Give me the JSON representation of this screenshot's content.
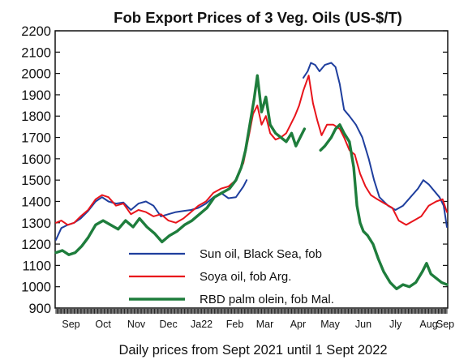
{
  "chart_data": {
    "type": "line",
    "title": "Fob Export Prices of 3 Veg. Oils  (US-$/T)",
    "xlabel": "Daily prices from Sept 2021 until 1 Sept 2022",
    "ylabel": "",
    "ylim": [
      900,
      2200
    ],
    "yticks": [
      900,
      1000,
      1100,
      1200,
      1300,
      1400,
      1500,
      1600,
      1700,
      1800,
      1900,
      2000,
      2100,
      2200
    ],
    "x_range": [
      "2021-09-01",
      "2022-09-01"
    ],
    "xticks": [
      {
        "label": "Sep",
        "date": "2021-09-15"
      },
      {
        "label": "Oct",
        "date": "2021-10-15"
      },
      {
        "label": "Nov",
        "date": "2021-11-15"
      },
      {
        "label": "Dec",
        "date": "2021-12-15"
      },
      {
        "label": "Ja22",
        "date": "2022-01-15"
      },
      {
        "label": "Feb",
        "date": "2022-02-15"
      },
      {
        "label": "Mar",
        "date": "2022-03-15"
      },
      {
        "label": "Apr",
        "date": "2022-04-15"
      },
      {
        "label": "May",
        "date": "2022-05-15"
      },
      {
        "label": "Jun",
        "date": "2022-06-15"
      },
      {
        "label": "Jly",
        "date": "2022-07-15"
      },
      {
        "label": "Aug",
        "date": "2022-08-15"
      },
      {
        "label": "Sep",
        "date": "2022-09-01"
      }
    ],
    "grid": false,
    "legend_position": "bottom-center",
    "series": [
      {
        "name": "Sun oil, Black Sea, fob",
        "color": "#1f3f9e",
        "points": [
          [
            "2021-09-01",
            1220
          ],
          [
            "2021-09-06",
            1275
          ],
          [
            "2021-09-12",
            1290
          ],
          [
            "2021-09-18",
            1300
          ],
          [
            "2021-09-24",
            1320
          ],
          [
            "2021-10-01",
            1355
          ],
          [
            "2021-10-08",
            1400
          ],
          [
            "2021-10-14",
            1420
          ],
          [
            "2021-10-20",
            1400
          ],
          [
            "2021-10-27",
            1390
          ],
          [
            "2021-11-03",
            1395
          ],
          [
            "2021-11-10",
            1360
          ],
          [
            "2021-11-17",
            1390
          ],
          [
            "2021-11-24",
            1400
          ],
          [
            "2021-12-01",
            1380
          ],
          [
            "2021-12-08",
            1330
          ],
          [
            "2021-12-15",
            1340
          ],
          [
            "2021-12-22",
            1350
          ],
          [
            "2021-12-29",
            1355
          ],
          [
            "2022-01-05",
            1360
          ],
          [
            "2022-01-12",
            1370
          ],
          [
            "2022-01-19",
            1390
          ],
          [
            "2022-01-26",
            1420
          ],
          [
            "2022-02-02",
            1440
          ],
          [
            "2022-02-09",
            1415
          ],
          [
            "2022-02-16",
            1420
          ],
          [
            "2022-02-23",
            1470
          ],
          [
            "2022-02-26",
            1500
          ],
          [
            "2022-04-20",
            1980
          ],
          [
            "2022-04-24",
            2010
          ],
          [
            "2022-04-27",
            2050
          ],
          [
            "2022-05-01",
            2040
          ],
          [
            "2022-05-05",
            2010
          ],
          [
            "2022-05-10",
            2040
          ],
          [
            "2022-05-16",
            2050
          ],
          [
            "2022-05-20",
            2030
          ],
          [
            "2022-05-24",
            1950
          ],
          [
            "2022-05-28",
            1830
          ],
          [
            "2022-06-02",
            1800
          ],
          [
            "2022-06-08",
            1760
          ],
          [
            "2022-06-14",
            1700
          ],
          [
            "2022-06-20",
            1600
          ],
          [
            "2022-06-25",
            1500
          ],
          [
            "2022-06-30",
            1420
          ],
          [
            "2022-07-08",
            1380
          ],
          [
            "2022-07-15",
            1360
          ],
          [
            "2022-07-22",
            1380
          ],
          [
            "2022-07-29",
            1420
          ],
          [
            "2022-08-05",
            1460
          ],
          [
            "2022-08-10",
            1500
          ],
          [
            "2022-08-15",
            1480
          ],
          [
            "2022-08-20",
            1450
          ],
          [
            "2022-08-25",
            1420
          ],
          [
            "2022-08-29",
            1380
          ],
          [
            "2022-09-01",
            1280
          ]
        ]
      },
      {
        "name": "Soya oil, fob Arg.",
        "color": "#e8141b",
        "points": [
          [
            "2021-09-01",
            1300
          ],
          [
            "2021-09-06",
            1310
          ],
          [
            "2021-09-12",
            1290
          ],
          [
            "2021-09-18",
            1300
          ],
          [
            "2021-09-24",
            1330
          ],
          [
            "2021-10-01",
            1360
          ],
          [
            "2021-10-08",
            1410
          ],
          [
            "2021-10-14",
            1430
          ],
          [
            "2021-10-20",
            1420
          ],
          [
            "2021-10-27",
            1380
          ],
          [
            "2021-11-03",
            1390
          ],
          [
            "2021-11-10",
            1340
          ],
          [
            "2021-11-17",
            1360
          ],
          [
            "2021-11-24",
            1350
          ],
          [
            "2021-12-01",
            1330
          ],
          [
            "2021-12-08",
            1340
          ],
          [
            "2021-12-15",
            1310
          ],
          [
            "2021-12-22",
            1300
          ],
          [
            "2021-12-29",
            1320
          ],
          [
            "2022-01-05",
            1350
          ],
          [
            "2022-01-12",
            1380
          ],
          [
            "2022-01-19",
            1400
          ],
          [
            "2022-01-26",
            1440
          ],
          [
            "2022-02-02",
            1460
          ],
          [
            "2022-02-09",
            1470
          ],
          [
            "2022-02-16",
            1500
          ],
          [
            "2022-02-23",
            1580
          ],
          [
            "2022-03-01",
            1730
          ],
          [
            "2022-03-04",
            1810
          ],
          [
            "2022-03-08",
            1850
          ],
          [
            "2022-03-12",
            1760
          ],
          [
            "2022-03-16",
            1800
          ],
          [
            "2022-03-20",
            1720
          ],
          [
            "2022-03-25",
            1690
          ],
          [
            "2022-03-30",
            1700
          ],
          [
            "2022-04-04",
            1720
          ],
          [
            "2022-04-08",
            1760
          ],
          [
            "2022-04-12",
            1800
          ],
          [
            "2022-04-16",
            1850
          ],
          [
            "2022-04-20",
            1920
          ],
          [
            "2022-04-25",
            1990
          ],
          [
            "2022-04-29",
            1860
          ],
          [
            "2022-05-03",
            1780
          ],
          [
            "2022-05-07",
            1710
          ],
          [
            "2022-05-12",
            1760
          ],
          [
            "2022-05-18",
            1760
          ],
          [
            "2022-05-24",
            1740
          ],
          [
            "2022-05-28",
            1700
          ],
          [
            "2022-06-02",
            1640
          ],
          [
            "2022-06-07",
            1620
          ],
          [
            "2022-06-12",
            1530
          ],
          [
            "2022-06-17",
            1470
          ],
          [
            "2022-06-22",
            1430
          ],
          [
            "2022-06-28",
            1410
          ],
          [
            "2022-07-05",
            1390
          ],
          [
            "2022-07-12",
            1370
          ],
          [
            "2022-07-18",
            1310
          ],
          [
            "2022-07-25",
            1290
          ],
          [
            "2022-08-01",
            1310
          ],
          [
            "2022-08-08",
            1330
          ],
          [
            "2022-08-15",
            1380
          ],
          [
            "2022-08-22",
            1400
          ],
          [
            "2022-08-28",
            1410
          ],
          [
            "2022-09-01",
            1350
          ]
        ]
      },
      {
        "name": "RBD palm olein, fob Mal.",
        "color": "#1e7d3c",
        "points": [
          [
            "2021-09-01",
            1160
          ],
          [
            "2021-09-07",
            1170
          ],
          [
            "2021-09-13",
            1150
          ],
          [
            "2021-09-19",
            1160
          ],
          [
            "2021-09-25",
            1190
          ],
          [
            "2021-10-01",
            1230
          ],
          [
            "2021-10-08",
            1290
          ],
          [
            "2021-10-15",
            1310
          ],
          [
            "2021-10-22",
            1290
          ],
          [
            "2021-10-29",
            1270
          ],
          [
            "2021-11-05",
            1310
          ],
          [
            "2021-11-12",
            1280
          ],
          [
            "2021-11-18",
            1320
          ],
          [
            "2021-11-25",
            1280
          ],
          [
            "2021-12-02",
            1250
          ],
          [
            "2021-12-09",
            1210
          ],
          [
            "2021-12-16",
            1240
          ],
          [
            "2021-12-23",
            1260
          ],
          [
            "2021-12-30",
            1290
          ],
          [
            "2022-01-06",
            1310
          ],
          [
            "2022-01-13",
            1340
          ],
          [
            "2022-01-20",
            1370
          ],
          [
            "2022-01-27",
            1420
          ],
          [
            "2022-02-03",
            1440
          ],
          [
            "2022-02-10",
            1460
          ],
          [
            "2022-02-16",
            1500
          ],
          [
            "2022-02-21",
            1560
          ],
          [
            "2022-02-25",
            1640
          ],
          [
            "2022-03-01",
            1760
          ],
          [
            "2022-03-05",
            1880
          ],
          [
            "2022-03-08",
            1990
          ],
          [
            "2022-03-12",
            1820
          ],
          [
            "2022-03-16",
            1890
          ],
          [
            "2022-03-20",
            1760
          ],
          [
            "2022-03-25",
            1720
          ],
          [
            "2022-03-30",
            1700
          ],
          [
            "2022-04-04",
            1680
          ],
          [
            "2022-04-09",
            1720
          ],
          [
            "2022-04-13",
            1660
          ],
          [
            "2022-04-17",
            1700
          ],
          [
            "2022-04-21",
            1740
          ],
          [
            "2022-05-06",
            1640
          ],
          [
            "2022-05-10",
            1660
          ],
          [
            "2022-05-16",
            1700
          ],
          [
            "2022-05-20",
            1740
          ],
          [
            "2022-05-24",
            1760
          ],
          [
            "2022-05-28",
            1720
          ],
          [
            "2022-06-02",
            1680
          ],
          [
            "2022-06-06",
            1560
          ],
          [
            "2022-06-09",
            1380
          ],
          [
            "2022-06-12",
            1300
          ],
          [
            "2022-06-15",
            1260
          ],
          [
            "2022-06-19",
            1240
          ],
          [
            "2022-06-24",
            1200
          ],
          [
            "2022-06-29",
            1130
          ],
          [
            "2022-07-04",
            1070
          ],
          [
            "2022-07-10",
            1020
          ],
          [
            "2022-07-16",
            990
          ],
          [
            "2022-07-22",
            1010
          ],
          [
            "2022-07-28",
            1000
          ],
          [
            "2022-08-03",
            1020
          ],
          [
            "2022-08-09",
            1070
          ],
          [
            "2022-08-13",
            1110
          ],
          [
            "2022-08-17",
            1060
          ],
          [
            "2022-08-22",
            1040
          ],
          [
            "2022-08-27",
            1020
          ],
          [
            "2022-09-01",
            1010
          ]
        ]
      }
    ]
  }
}
